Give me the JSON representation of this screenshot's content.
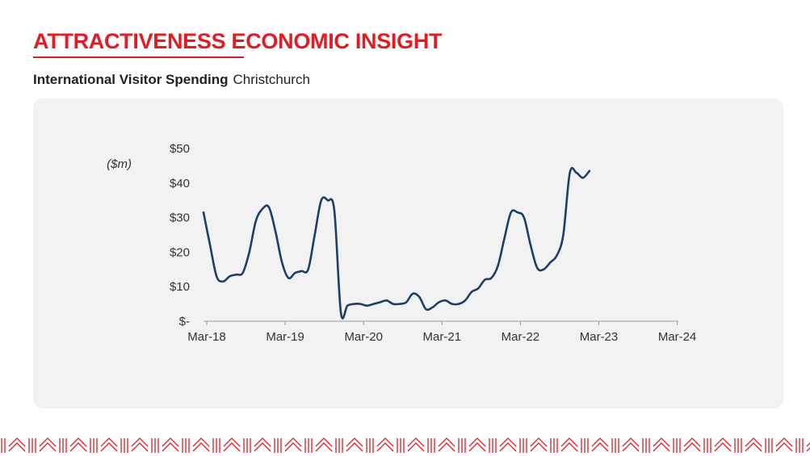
{
  "page": {
    "title": "ATTRACTIVENESS ECONOMIC INSIGHT",
    "subtitle_bold": "International Visitor Spending",
    "subtitle_place": "Christchurch"
  },
  "colors": {
    "accent": "#e31b23",
    "line": "#1b3f66",
    "panel": "#f2f2f2"
  },
  "chart_data": {
    "type": "line",
    "title": "",
    "xlabel": "",
    "ylabel": "($m)",
    "x_start": "Mar-18",
    "x_end": "Apr-24",
    "x_ticks": [
      "Mar-18",
      "Mar-19",
      "Mar-20",
      "Mar-21",
      "Mar-22",
      "Mar-23",
      "Mar-24"
    ],
    "y_ticks": [
      0,
      10,
      20,
      30,
      40,
      50
    ],
    "y_tick_labels": [
      "$-",
      "$10",
      "$20",
      "$30",
      "$40",
      "$50"
    ],
    "ylim": [
      0,
      50
    ],
    "grid": false,
    "series": [
      {
        "name": "",
        "values": [
          31.5,
          22,
          13,
          11.5,
          13,
          13.5,
          14,
          20,
          29,
          32.5,
          33,
          26,
          17,
          12.5,
          14,
          14.5,
          15,
          25,
          35,
          35,
          32,
          2.5,
          4.5,
          5,
          5,
          4.5,
          5,
          5.5,
          6,
          5,
          5,
          5.5,
          8,
          7,
          3.5,
          4,
          5.5,
          6,
          5,
          5,
          6,
          8.5,
          9.5,
          12,
          12.5,
          16,
          24,
          31.5,
          31.5,
          30,
          22,
          15.5,
          15,
          17,
          19,
          25,
          43,
          43,
          41.5,
          43.5
        ]
      }
    ]
  }
}
